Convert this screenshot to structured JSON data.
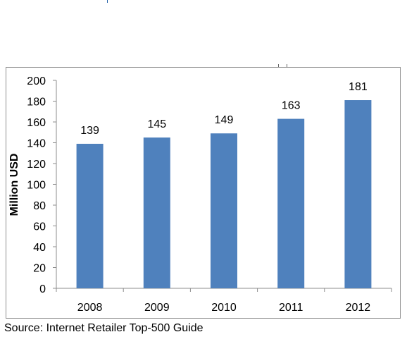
{
  "chart_data": {
    "type": "bar",
    "categories": [
      "2008",
      "2009",
      "2010",
      "2011",
      "2012"
    ],
    "values": [
      139,
      145,
      149,
      163,
      181
    ],
    "data_labels": [
      "139",
      "145",
      "149",
      "163",
      "181"
    ],
    "title": "",
    "xlabel": "",
    "ylabel": "Million USD",
    "ylim": [
      0,
      200
    ],
    "yticks": [
      "0",
      "20",
      "40",
      "60",
      "80",
      "100",
      "120",
      "140",
      "160",
      "180",
      "200"
    ],
    "grid": false,
    "legend": "none",
    "colors": {
      "bar": "#4f81bd",
      "axis": "#8c8c8c",
      "text": "#000000"
    }
  },
  "source_note": "Source: Internet Retailer Top-500 Guide"
}
